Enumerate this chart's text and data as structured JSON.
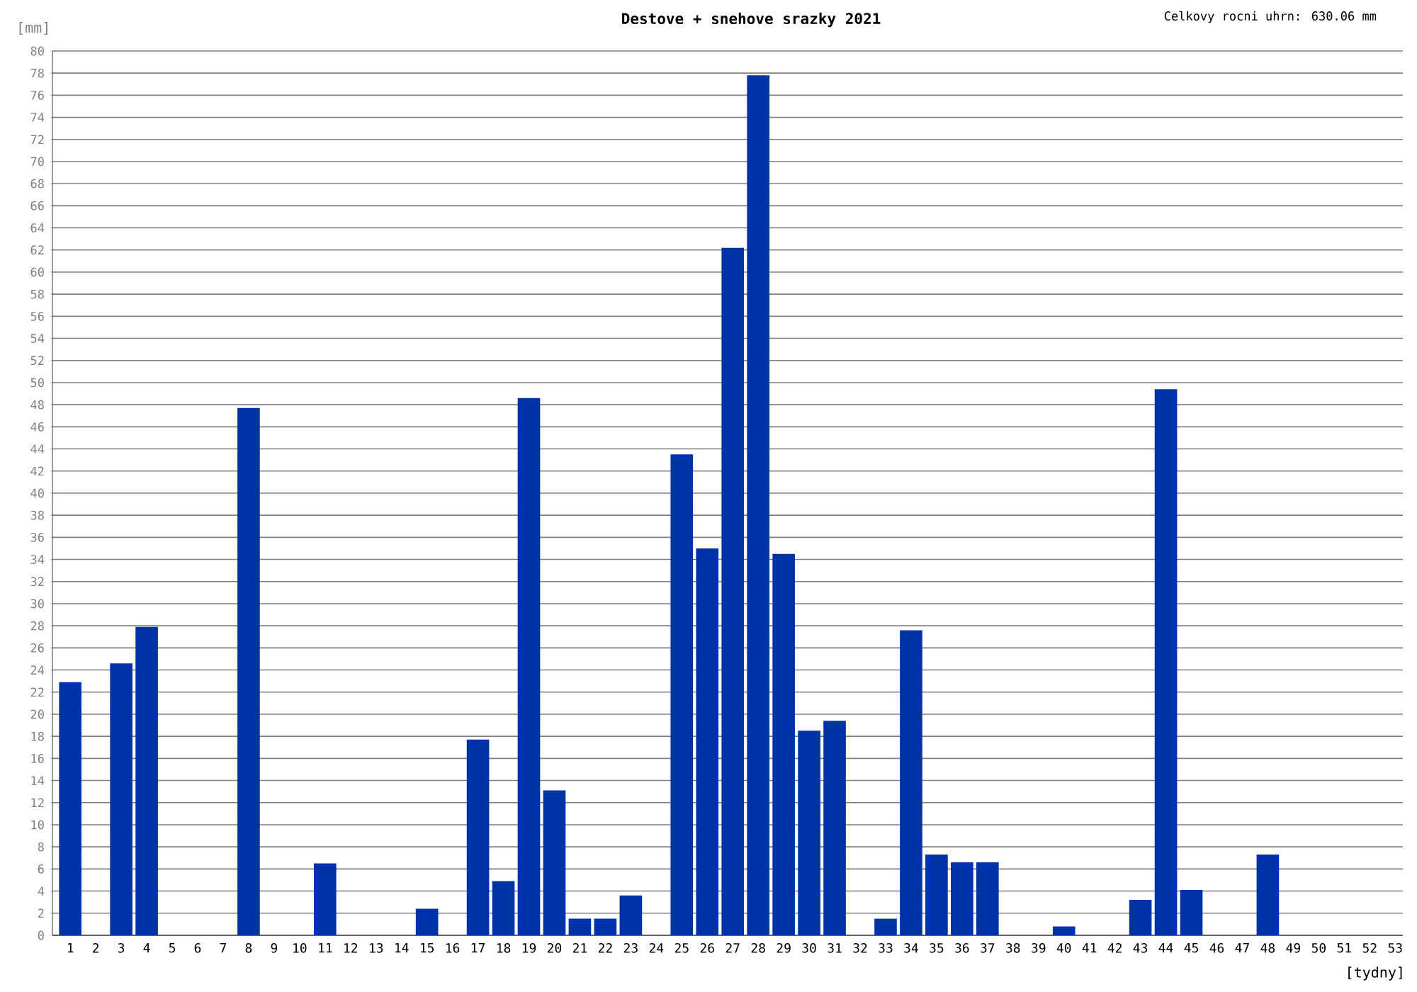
{
  "chart_data": {
    "type": "bar",
    "title": "Destove + snehove srazky 2021",
    "annotations": [
      "Celkovy rocni uhrn: 630.06 mm"
    ],
    "xlabel": "[tydny]",
    "ylabel": "[mm]",
    "categories": [
      "1",
      "2",
      "3",
      "4",
      "5",
      "6",
      "7",
      "8",
      "9",
      "10",
      "11",
      "12",
      "13",
      "14",
      "15",
      "16",
      "17",
      "18",
      "19",
      "20",
      "21",
      "22",
      "23",
      "24",
      "25",
      "26",
      "27",
      "28",
      "29",
      "30",
      "31",
      "32",
      "33",
      "34",
      "35",
      "36",
      "37",
      "38",
      "39",
      "40",
      "41",
      "42",
      "43",
      "44",
      "45",
      "46",
      "47",
      "48",
      "49",
      "50",
      "51",
      "52",
      "53"
    ],
    "values": [
      22.9,
      0,
      24.6,
      27.9,
      0,
      0,
      0,
      47.7,
      0,
      0,
      6.5,
      0,
      0,
      0,
      2.4,
      0,
      17.7,
      4.9,
      48.6,
      13.1,
      1.5,
      1.5,
      3.6,
      0,
      43.5,
      35.0,
      62.2,
      77.8,
      34.5,
      18.5,
      19.4,
      0,
      1.5,
      27.6,
      7.3,
      6.6,
      6.6,
      0,
      0,
      0.8,
      0,
      0,
      3.2,
      49.4,
      4.1,
      0,
      0,
      7.3,
      0,
      0,
      0,
      0,
      0
    ],
    "color": "#0033a8",
    "ylim": [
      0,
      80
    ],
    "yticks": [
      0,
      2,
      4,
      6,
      8,
      10,
      12,
      14,
      16,
      18,
      20,
      22,
      24,
      26,
      28,
      30,
      32,
      34,
      36,
      38,
      40,
      42,
      44,
      46,
      48,
      50,
      52,
      54,
      56,
      58,
      60,
      62,
      64,
      66,
      68,
      70,
      72,
      74,
      76,
      78,
      80
    ],
    "grid": "y"
  }
}
